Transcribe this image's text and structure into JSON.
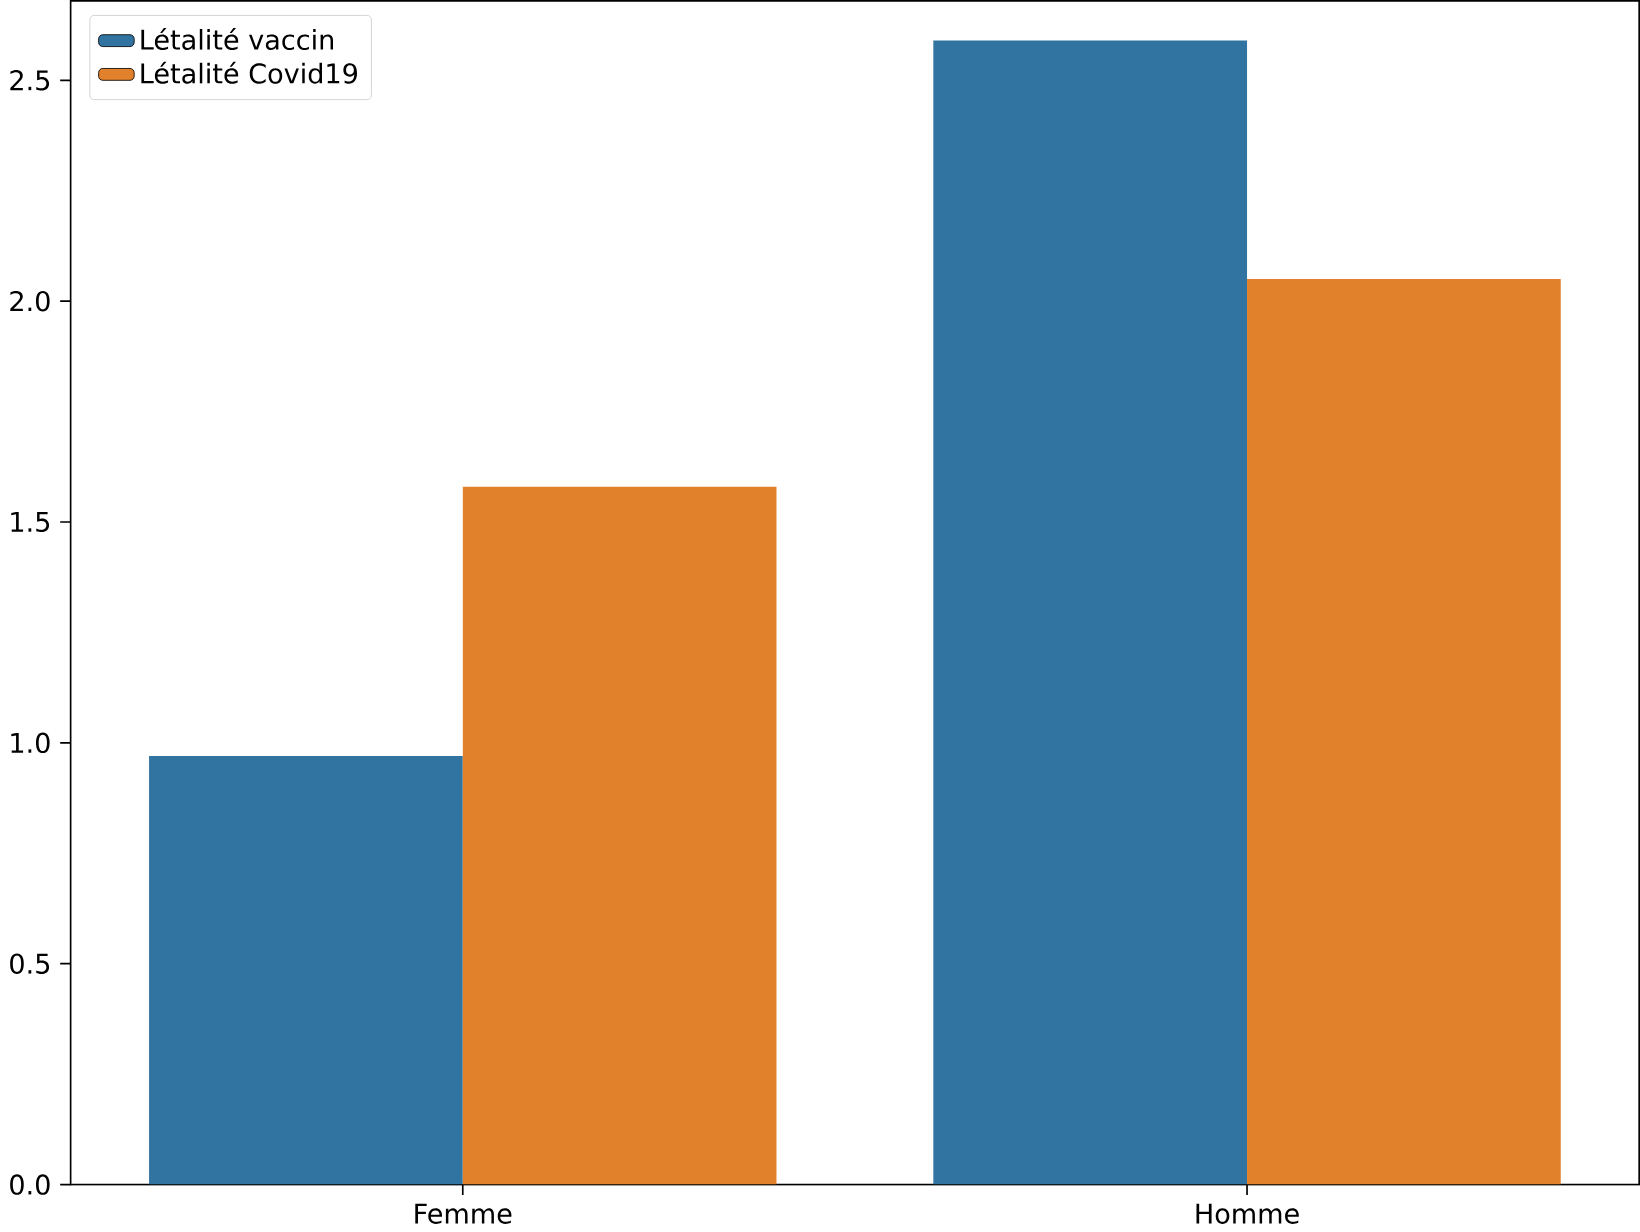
{
  "chart_data": {
    "type": "bar",
    "categories": [
      "Femme",
      "Homme"
    ],
    "series": [
      {
        "name": "Létalité vaccin",
        "color": "#3274a1",
        "values": [
          0.97,
          2.59
        ]
      },
      {
        "name": "Létalité Covid19",
        "color": "#e1812c",
        "values": [
          1.58,
          2.05
        ]
      }
    ],
    "ylim": [
      0,
      2.68
    ],
    "yticks": [
      {
        "value": 0,
        "label": "0.0"
      },
      0.5,
      {
        "value": 1,
        "label": "1.0"
      },
      1.5,
      {
        "value": 2,
        "label": "2.0"
      },
      2.5
    ],
    "legend": "top left",
    "grid": false
  }
}
